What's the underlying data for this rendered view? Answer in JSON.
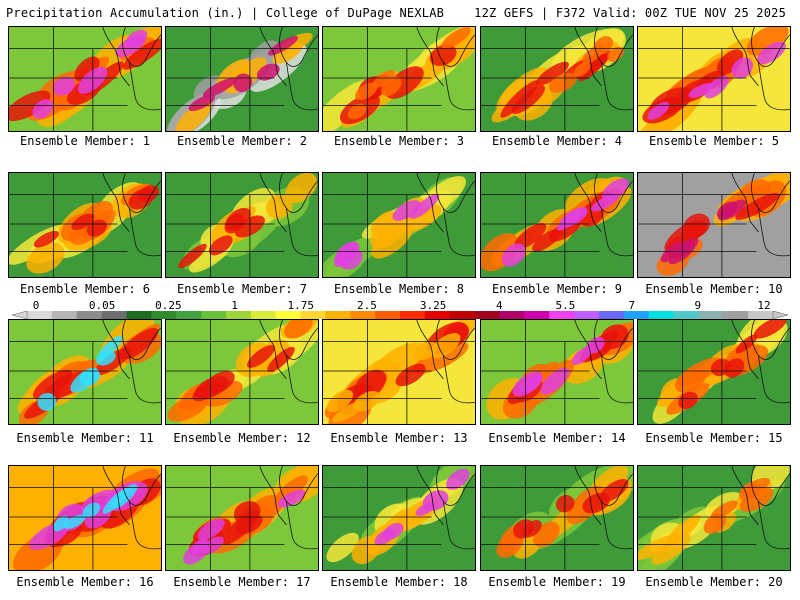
{
  "header": {
    "left": "Precipitation Accumulation (in.) | College of DuPage NEXLAB",
    "right": "12Z GEFS | F372 Valid: 00Z TUE NOV 25 2025"
  },
  "members": [
    {
      "label": "Ensemble Member: 1"
    },
    {
      "label": "Ensemble Member: 2"
    },
    {
      "label": "Ensemble Member: 3"
    },
    {
      "label": "Ensemble Member: 4"
    },
    {
      "label": "Ensemble Member: 5"
    },
    {
      "label": "Ensemble Member: 6"
    },
    {
      "label": "Ensemble Member: 7"
    },
    {
      "label": "Ensemble Member: 8"
    },
    {
      "label": "Ensemble Member: 9"
    },
    {
      "label": "Ensemble Member: 10"
    },
    {
      "label": "Ensemble Member: 11"
    },
    {
      "label": "Ensemble Member: 12"
    },
    {
      "label": "Ensemble Member: 13"
    },
    {
      "label": "Ensemble Member: 14"
    },
    {
      "label": "Ensemble Member: 15"
    },
    {
      "label": "Ensemble Member: 16"
    },
    {
      "label": "Ensemble Member: 17"
    },
    {
      "label": "Ensemble Member: 18"
    },
    {
      "label": "Ensemble Member: 19"
    },
    {
      "label": "Ensemble Member: 20"
    }
  ],
  "colorbar": {
    "labels": [
      "0",
      "0.05",
      "0.25",
      "1",
      "1.75",
      "2.5",
      "3.25",
      "4",
      "5.5",
      "7",
      "9",
      "12"
    ],
    "colors": [
      "#d8d8d8",
      "#b4b4b4",
      "#8c8c8c",
      "#6e6e6e",
      "#1f6b1f",
      "#2e8b2e",
      "#3fa33f",
      "#66c23a",
      "#9ad63a",
      "#d8ec3a",
      "#ffff33",
      "#ffd633",
      "#ffb000",
      "#ff8c00",
      "#ff5a00",
      "#ff2a00",
      "#e60000",
      "#c00000",
      "#a00020",
      "#b0006a",
      "#d000b0",
      "#f040f0",
      "#c060ff",
      "#6a6aff",
      "#20a0ff",
      "#00e0e0",
      "#50c8c8",
      "#8ab0b0",
      "#a0a0a0",
      "#c8c8c8"
    ]
  }
}
